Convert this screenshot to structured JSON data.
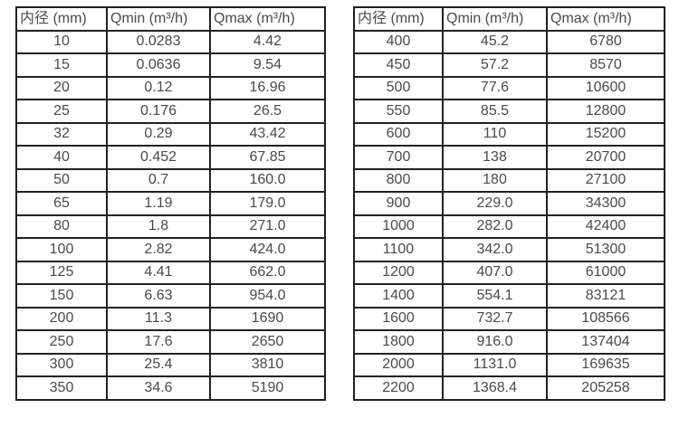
{
  "page": {
    "background_color": "#ffffff",
    "text_color": "#4a4a4a",
    "border_color": "#212121"
  },
  "tables": [
    {
      "name": "flow-table-small-diameters",
      "headers": [
        "内径 (mm)",
        "Qmin (m³/h)",
        "Qmax (m³/h)"
      ],
      "rows": [
        [
          "10",
          "0.0283",
          "4.42"
        ],
        [
          "15",
          "0.0636",
          "9.54"
        ],
        [
          "20",
          "0.12",
          "16.96"
        ],
        [
          "25",
          "0.176",
          "26.5"
        ],
        [
          "32",
          "0.29",
          "43.42"
        ],
        [
          "40",
          "0.452",
          "67.85"
        ],
        [
          "50",
          "0.7",
          "160.0"
        ],
        [
          "65",
          "1.19",
          "179.0"
        ],
        [
          "80",
          "1.8",
          "271.0"
        ],
        [
          "100",
          "2.82",
          "424.0"
        ],
        [
          "125",
          "4.41",
          "662.0"
        ],
        [
          "150",
          "6.63",
          "954.0"
        ],
        [
          "200",
          "11.3",
          "1690"
        ],
        [
          "250",
          "17.6",
          "2650"
        ],
        [
          "300",
          "25.4",
          "3810"
        ],
        [
          "350",
          "34.6",
          "5190"
        ]
      ]
    },
    {
      "name": "flow-table-large-diameters",
      "headers": [
        "内径 (mm)",
        "Qmin (m³/h)",
        "Qmax (m³/h)"
      ],
      "rows": [
        [
          "400",
          "45.2",
          "6780"
        ],
        [
          "450",
          "57.2",
          "8570"
        ],
        [
          "500",
          "77.6",
          "10600"
        ],
        [
          "550",
          "85.5",
          "12800"
        ],
        [
          "600",
          "110",
          "15200"
        ],
        [
          "700",
          "138",
          "20700"
        ],
        [
          "800",
          "180",
          "27100"
        ],
        [
          "900",
          "229.0",
          "34300"
        ],
        [
          "1000",
          "282.0",
          "42400"
        ],
        [
          "1100",
          "342.0",
          "51300"
        ],
        [
          "1200",
          "407.0",
          "61000"
        ],
        [
          "1400",
          "554.1",
          "83121"
        ],
        [
          "1600",
          "732.7",
          "108566"
        ],
        [
          "1800",
          "916.0",
          "137404"
        ],
        [
          "2000",
          "1131.0",
          "169635"
        ],
        [
          "2200",
          "1368.4",
          "205258"
        ]
      ]
    }
  ]
}
